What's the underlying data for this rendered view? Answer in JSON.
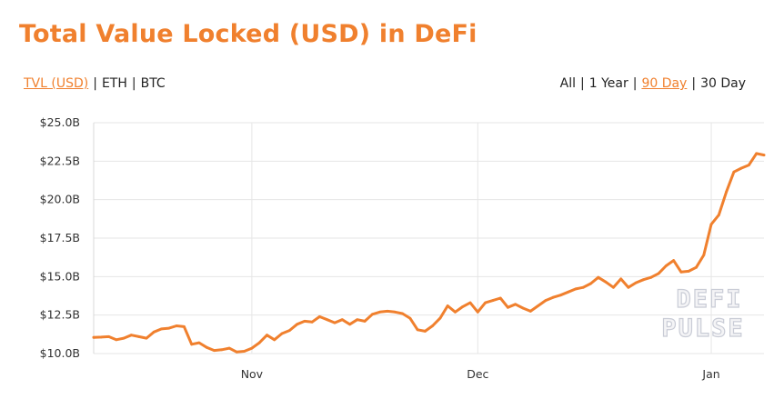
{
  "title": "Total Value Locked (USD) in DeFi",
  "unit_toggle": [
    {
      "label": "TVL (USD)",
      "active": true
    },
    {
      "label": "ETH",
      "active": false
    },
    {
      "label": "BTC",
      "active": false
    }
  ],
  "range_toggle": [
    {
      "label": "All",
      "active": false
    },
    {
      "label": "1 Year",
      "active": false
    },
    {
      "label": "90 Day",
      "active": true
    },
    {
      "label": "30 Day",
      "active": false
    }
  ],
  "watermark": [
    "DEFI",
    "PULSE"
  ],
  "colors": {
    "accent": "#f0802e",
    "line": "#f0802e",
    "grid": "#e6e6e6",
    "text": "#222222"
  },
  "chart_data": {
    "type": "line",
    "title": "",
    "xlabel": "",
    "ylabel": "",
    "grid": true,
    "legend": "none",
    "x_start": "2019-10-11",
    "x_ticks": [
      {
        "label": "Nov",
        "date": "2019-11-01"
      },
      {
        "label": "Dec",
        "date": "2019-12-01"
      },
      {
        "label": "Jan",
        "date": "2020-01-01"
      }
    ],
    "ylim": [
      10.0,
      25.0
    ],
    "y_ticks": [
      {
        "value": 10.0,
        "label": "$10.0B"
      },
      {
        "value": 12.5,
        "label": "$12.5B"
      },
      {
        "value": 15.0,
        "label": "$15.0B"
      },
      {
        "value": 17.5,
        "label": "$17.5B"
      },
      {
        "value": 20.0,
        "label": "$20.0B"
      },
      {
        "value": 22.5,
        "label": "$22.5B"
      },
      {
        "value": 25.0,
        "label": "$25.0B"
      }
    ],
    "series": [
      {
        "color": "#f0802e",
        "values": [
          11.05,
          11.07,
          11.1,
          10.9,
          11.0,
          11.2,
          11.1,
          11.0,
          11.4,
          11.6,
          11.65,
          11.8,
          11.75,
          10.6,
          10.7,
          10.4,
          10.2,
          10.25,
          10.35,
          10.1,
          10.15,
          10.35,
          10.7,
          11.2,
          10.9,
          11.3,
          11.5,
          11.9,
          12.1,
          12.05,
          12.4,
          12.2,
          12.0,
          12.2,
          11.9,
          12.2,
          12.1,
          12.55,
          12.7,
          12.75,
          12.7,
          12.6,
          12.3,
          11.55,
          11.45,
          11.8,
          12.3,
          13.1,
          12.7,
          13.05,
          13.3,
          12.7,
          13.3,
          13.45,
          13.6,
          13.0,
          13.2,
          12.95,
          12.75,
          13.1,
          13.45,
          13.65,
          13.8,
          14.0,
          14.2,
          14.3,
          14.55,
          14.95,
          14.65,
          14.3,
          14.85,
          14.3,
          14.6,
          14.8,
          14.95,
          15.2,
          15.7,
          16.05,
          15.3,
          15.35,
          15.6,
          16.4,
          18.4,
          19.0,
          20.5,
          21.8,
          22.05,
          22.25,
          23.0,
          22.9
        ]
      }
    ]
  }
}
